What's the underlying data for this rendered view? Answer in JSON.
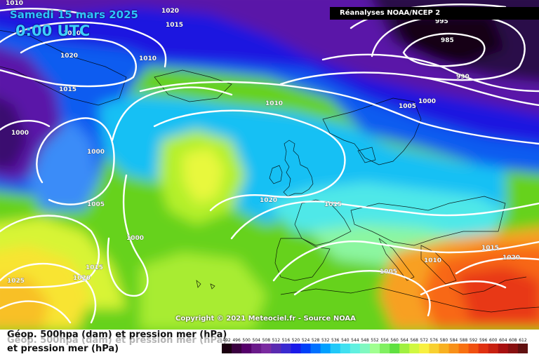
{
  "header": {
    "date": "Samedi 15 mars 2025",
    "time": "0:00 UTC",
    "source": "Réanalyses NOAA/NCEP 2"
  },
  "footer": {
    "copyright": "Copyright © 2021 Meteociel.fr - Source NOAA",
    "legend_line1": "Géop. 500hpa (dam) et pression mer (hPa)",
    "legend_line2": "et pression mer (hPa)"
  },
  "colorbar": {
    "tick_labels": [
      "492",
      "496",
      "500",
      "504",
      "508",
      "512",
      "516",
      "520",
      "524",
      "528",
      "532",
      "536",
      "540",
      "544",
      "548",
      "552",
      "556",
      "560",
      "564",
      "568",
      "572",
      "576",
      "580",
      "584",
      "588",
      "592",
      "596",
      "600",
      "604",
      "608",
      "612"
    ],
    "colors": [
      "#1a0010",
      "#3a0040",
      "#55006a",
      "#6a1a8a",
      "#7a2aa0",
      "#5a2ab0",
      "#3a2ad0",
      "#1a1ae8",
      "#0040f8",
      "#0070ff",
      "#00a0ff",
      "#20c8f8",
      "#40e0f0",
      "#60f0e0",
      "#80f8c0",
      "#a0ff90",
      "#80f060",
      "#60e040",
      "#a0f040",
      "#d0f840",
      "#f8f040",
      "#f8d030",
      "#f8b020",
      "#f89018",
      "#f87010",
      "#f05010",
      "#e03010",
      "#c82010",
      "#a81010",
      "#881010",
      "#601010"
    ]
  },
  "isobar_labels": [
    {
      "text": "1010"
    },
    {
      "text": "1020"
    },
    {
      "text": "1015"
    },
    {
      "text": "1020"
    },
    {
      "text": "1010"
    },
    {
      "text": "1015"
    },
    {
      "text": "1000"
    },
    {
      "text": "1000"
    },
    {
      "text": "1005"
    },
    {
      "text": "1000"
    },
    {
      "text": "1015"
    },
    {
      "text": "1020"
    },
    {
      "text": "1025"
    },
    {
      "text": "1010"
    },
    {
      "text": "1020"
    },
    {
      "text": "1015"
    },
    {
      "text": "1005"
    },
    {
      "text": "1000"
    },
    {
      "text": "985"
    },
    {
      "text": "990"
    },
    {
      "text": "995"
    },
    {
      "text": "1005"
    },
    {
      "text": "1010"
    },
    {
      "text": "1015"
    },
    {
      "text": "1020"
    },
    {
      "text": "1020"
    }
  ]
}
